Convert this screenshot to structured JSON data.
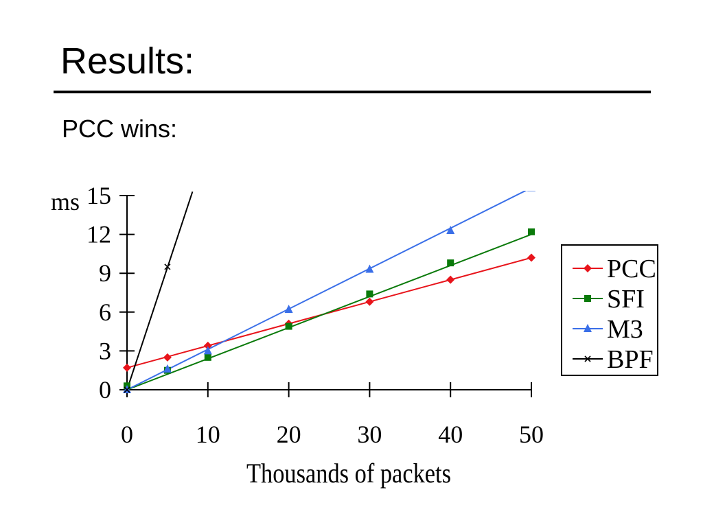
{
  "slide": {
    "title": "Results:",
    "subtitle": "PCC wins:"
  },
  "chart_data": {
    "type": "line",
    "title": "",
    "xlabel": "Thousands of packets",
    "ylabel": "ms",
    "xlim": [
      0,
      50
    ],
    "ylim": [
      0,
      15
    ],
    "xticks": [
      0,
      10,
      20,
      30,
      40,
      50
    ],
    "yticks": [
      0,
      3,
      6,
      9,
      12,
      15
    ],
    "grid": false,
    "legend_position": "right",
    "series": [
      {
        "name": "PCC",
        "color": "#e8141b",
        "marker": "diamond",
        "points": [
          [
            0,
            1.7
          ],
          [
            5,
            2.5
          ],
          [
            10,
            3.4
          ],
          [
            20,
            5.1
          ],
          [
            30,
            6.8
          ],
          [
            40,
            8.5
          ],
          [
            50,
            10.2
          ]
        ],
        "fit": [
          [
            0,
            1.7
          ],
          [
            50,
            10.2
          ]
        ]
      },
      {
        "name": "SFI",
        "color": "#0a7a0a",
        "marker": "square",
        "points": [
          [
            0,
            0.3
          ],
          [
            5,
            1.5
          ],
          [
            10,
            2.5
          ],
          [
            20,
            4.9
          ],
          [
            30,
            7.4
          ],
          [
            40,
            9.8
          ],
          [
            50,
            12.2
          ]
        ],
        "fit": [
          [
            0,
            0
          ],
          [
            50,
            12.0
          ]
        ]
      },
      {
        "name": "M3",
        "color": "#3a6fe8",
        "marker": "triangle",
        "points": [
          [
            0,
            0
          ],
          [
            5,
            1.6
          ],
          [
            10,
            3.0
          ],
          [
            20,
            6.2
          ],
          [
            30,
            9.3
          ],
          [
            40,
            12.3
          ],
          [
            50,
            15.6
          ]
        ],
        "fit": [
          [
            0,
            0
          ],
          [
            50,
            15.6
          ]
        ]
      },
      {
        "name": "BPF",
        "color": "#000000",
        "marker": "x",
        "points": [
          [
            0,
            0
          ],
          [
            5,
            9.5
          ]
        ],
        "fit": [
          [
            0,
            0
          ],
          [
            8.1,
            15.3
          ]
        ]
      }
    ]
  }
}
